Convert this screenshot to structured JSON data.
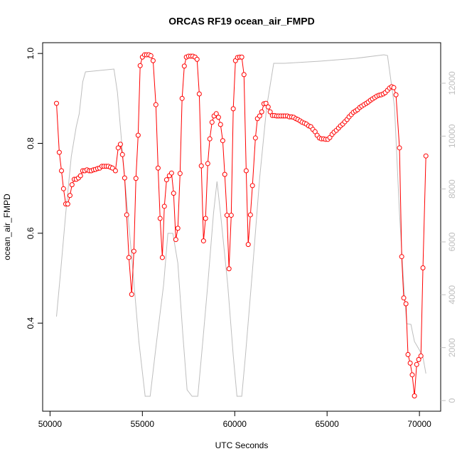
{
  "chart_data": {
    "type": "line",
    "title": "ORCAS RF19 ocean_air_FMPD",
    "xlabel": "UTC Seconds",
    "ylabel": "ocean_air_FMPD",
    "xlim": [
      49600,
      71150
    ],
    "ylim": [
      0.204,
      1.024
    ],
    "y2lim": [
      -404,
      13533
    ],
    "xticks": [
      50000,
      55000,
      60000,
      65000,
      70000
    ],
    "yticks": [
      0.4,
      0.6,
      0.8,
      {
        "value": 1,
        "label": "1.0"
      }
    ],
    "y2ticks": [
      0,
      2000,
      4000,
      6000,
      8000,
      10000,
      12000
    ],
    "series": [
      {
        "color": "#ff0000",
        "marker": "circle",
        "x": [
          50350,
          50500,
          50620,
          50730,
          50850,
          50960,
          51080,
          51190,
          51310,
          51420,
          51540,
          51650,
          51770,
          51880,
          52000,
          52120,
          52230,
          52350,
          52460,
          52580,
          52690,
          52810,
          52920,
          53040,
          53150,
          53270,
          53380,
          53540,
          53690,
          53810,
          53920,
          54040,
          54150,
          54270,
          54420,
          54540,
          54650,
          54770,
          54880,
          55000,
          55120,
          55230,
          55350,
          55460,
          55580,
          55730,
          55850,
          55960,
          56080,
          56190,
          56310,
          56460,
          56580,
          56690,
          56810,
          56920,
          57040,
          57150,
          57270,
          57380,
          57500,
          57620,
          57730,
          57850,
          57960,
          58080,
          58190,
          58310,
          58420,
          58540,
          58650,
          58770,
          58880,
          59000,
          59120,
          59230,
          59350,
          59460,
          59580,
          59690,
          59810,
          59920,
          60040,
          60150,
          60270,
          60380,
          60500,
          60620,
          60730,
          60850,
          60960,
          61120,
          61230,
          61350,
          61460,
          61580,
          61690,
          61810,
          61920,
          62040,
          62150,
          62270,
          62380,
          62500,
          62620,
          62730,
          62850,
          62960,
          63080,
          63190,
          63310,
          63420,
          63540,
          63650,
          63770,
          63880,
          64000,
          64120,
          64230,
          64350,
          64460,
          64580,
          64690,
          64810,
          64920,
          65040,
          65150,
          65270,
          65380,
          65500,
          65620,
          65730,
          65850,
          65960,
          66080,
          66190,
          66310,
          66420,
          66540,
          66650,
          66770,
          66880,
          67000,
          67120,
          67230,
          67350,
          67460,
          67580,
          67690,
          67810,
          67920,
          68040,
          68150,
          68270,
          68380,
          68500,
          68610,
          68730,
          68920,
          69040,
          69150,
          69270,
          69380,
          69500,
          69610,
          69730,
          69850,
          69960,
          70080,
          70190,
          70350
        ],
        "values": [
          0.889,
          0.78,
          0.739,
          0.699,
          0.665,
          0.665,
          0.684,
          0.708,
          0.72,
          0.72,
          0.723,
          0.728,
          0.739,
          0.739,
          0.741,
          0.739,
          0.739,
          0.741,
          0.742,
          0.744,
          0.745,
          0.749,
          0.749,
          0.749,
          0.749,
          0.747,
          0.745,
          0.739,
          0.79,
          0.798,
          0.775,
          0.723,
          0.641,
          0.546,
          0.464,
          0.56,
          0.722,
          0.818,
          0.973,
          0.992,
          0.997,
          0.997,
          0.997,
          0.995,
          0.984,
          0.886,
          0.745,
          0.633,
          0.546,
          0.66,
          0.719,
          0.728,
          0.734,
          0.689,
          0.586,
          0.611,
          0.733,
          0.9,
          0.972,
          0.992,
          0.994,
          0.994,
          0.994,
          0.992,
          0.987,
          0.91,
          0.75,
          0.583,
          0.633,
          0.755,
          0.81,
          0.847,
          0.861,
          0.866,
          0.858,
          0.842,
          0.806,
          0.731,
          0.64,
          0.521,
          0.64,
          0.877,
          0.984,
          0.991,
          0.992,
          0.992,
          0.953,
          0.739,
          0.575,
          0.641,
          0.706,
          0.812,
          0.855,
          0.861,
          0.87,
          0.888,
          0.889,
          0.881,
          0.87,
          0.862,
          0.862,
          0.861,
          0.861,
          0.861,
          0.861,
          0.861,
          0.861,
          0.859,
          0.859,
          0.858,
          0.855,
          0.853,
          0.85,
          0.847,
          0.845,
          0.843,
          0.839,
          0.837,
          0.831,
          0.826,
          0.818,
          0.812,
          0.81,
          0.81,
          0.809,
          0.809,
          0.813,
          0.82,
          0.825,
          0.829,
          0.834,
          0.839,
          0.843,
          0.848,
          0.853,
          0.859,
          0.864,
          0.869,
          0.872,
          0.875,
          0.88,
          0.883,
          0.886,
          0.889,
          0.892,
          0.896,
          0.899,
          0.902,
          0.905,
          0.907,
          0.908,
          0.91,
          0.913,
          0.918,
          0.923,
          0.926,
          0.924,
          0.908,
          0.79,
          0.548,
          0.456,
          0.443,
          0.33,
          0.311,
          0.285,
          0.238,
          0.308,
          0.319,
          0.327,
          0.523,
          0.772
        ]
      },
      {
        "color": "#bebebe",
        "axis": "y2",
        "x": [
          50350,
          50580,
          50850,
          51150,
          51420,
          51580,
          51770,
          51920,
          53460,
          53650,
          54040,
          54420,
          54810,
          55150,
          55420,
          55770,
          56150,
          56380,
          56650,
          56920,
          57190,
          57420,
          57690,
          58000,
          58270,
          58540,
          58850,
          59040,
          59230,
          59620,
          59920,
          60120,
          60380,
          60580,
          60960,
          61350,
          61730,
          62110,
          62690,
          64610,
          66540,
          68080,
          68270,
          68650,
          68920,
          69150,
          69310,
          69540,
          69730,
          70000,
          70190,
          70350
        ],
        "values": [
          3175,
          4923,
          7076,
          9228,
          10358,
          10842,
          12053,
          12430,
          12537,
          11649,
          8421,
          5461,
          2233,
          161,
          161,
          2233,
          4385,
          6322,
          6322,
          5192,
          2502,
          404,
          161,
          161,
          2233,
          4385,
          7076,
          8286,
          7076,
          4385,
          1695,
          161,
          161,
          1695,
          4923,
          8421,
          11111,
          12752,
          12752,
          12833,
          12940,
          13075,
          13048,
          11111,
          7076,
          4385,
          2906,
          2879,
          2233,
          1910,
          1641,
          1022
        ]
      }
    ]
  }
}
